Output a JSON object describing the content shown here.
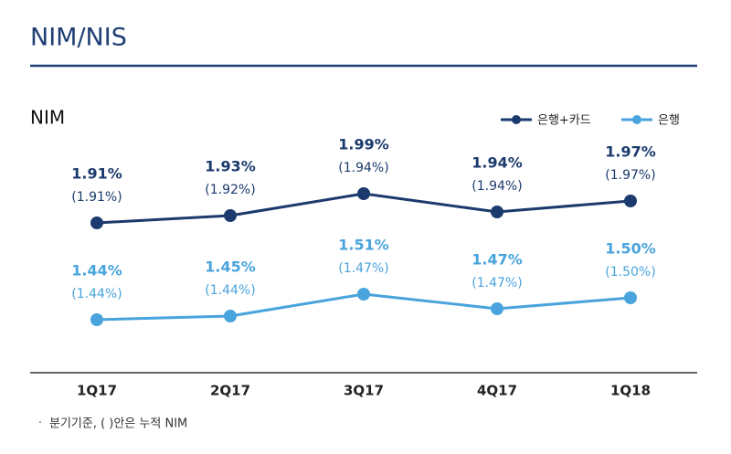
{
  "title": "NIM/NIS",
  "chart_data": {
    "type": "line",
    "title": "NIM",
    "categories": [
      "1Q17",
      "2Q17",
      "3Q17",
      "4Q17",
      "1Q18"
    ],
    "series": [
      {
        "name": "은행+카드",
        "color": "#1b3a6d",
        "values": [
          1.91,
          1.93,
          1.99,
          1.94,
          1.97
        ],
        "value_labels": [
          "1.91%",
          "1.93%",
          "1.99%",
          "1.94%",
          "1.97%"
        ],
        "cumulative_values": [
          1.91,
          1.92,
          1.94,
          1.94,
          1.97
        ],
        "cumulative_labels": [
          "(1.91%)",
          "(1.92%)",
          "(1.94%)",
          "(1.94%)",
          "(1.97%)"
        ]
      },
      {
        "name": "은행",
        "color": "#49a3dc",
        "values": [
          1.44,
          1.45,
          1.51,
          1.47,
          1.5
        ],
        "value_labels": [
          "1.44%",
          "1.45%",
          "1.51%",
          "1.47%",
          "1.50%"
        ],
        "cumulative_values": [
          1.44,
          1.44,
          1.47,
          1.47,
          1.5
        ],
        "cumulative_labels": [
          "(1.44%)",
          "(1.44%)",
          "(1.47%)",
          "(1.47%)",
          "(1.50%)"
        ]
      }
    ],
    "legend": "top-right"
  },
  "footnote": "분기기준, ( )안은 누적 NIM"
}
